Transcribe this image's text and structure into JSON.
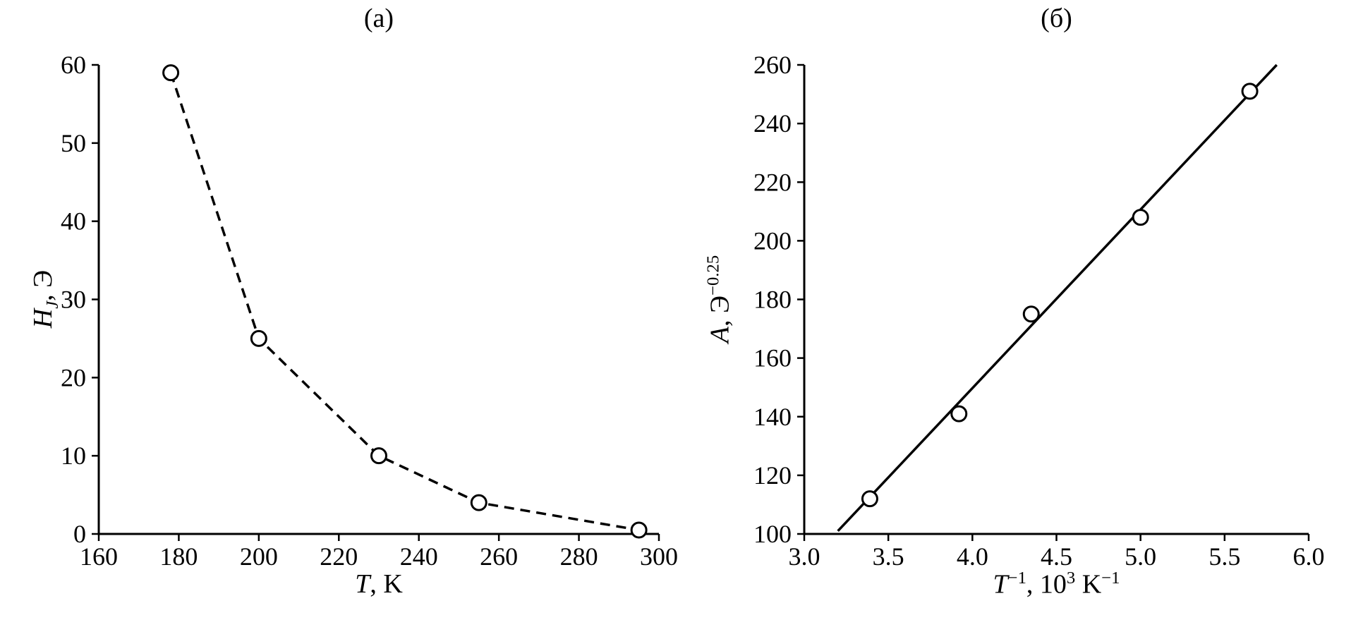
{
  "figure": {
    "background": "#ffffff",
    "ink_color": "#000000",
    "marker_fill": "#ffffff"
  },
  "chart_data": [
    {
      "type": "scatter",
      "panel_label": "(а)",
      "x": [
        178,
        200,
        230,
        255,
        295
      ],
      "y": [
        59,
        25,
        10,
        4,
        0.5
      ],
      "connect": "dashed",
      "marker": "open-circle",
      "xlim": [
        160,
        300
      ],
      "ylim": [
        0,
        60
      ],
      "xticks": [
        160,
        180,
        200,
        220,
        240,
        260,
        280,
        300
      ],
      "xtick_labels": [
        "160",
        "180",
        "200",
        "220",
        "240",
        "260",
        "280",
        "300"
      ],
      "yticks": [
        0,
        10,
        20,
        30,
        40,
        50,
        60
      ],
      "ytick_labels": [
        "0",
        "10",
        "20",
        "30",
        "40",
        "50",
        "60"
      ],
      "xlabel": {
        "text": "T, K",
        "parts": [
          [
            "i",
            "T"
          ],
          [
            "n",
            ", K"
          ]
        ]
      },
      "ylabel": {
        "text": "H_J, Э",
        "parts": [
          [
            "i",
            "H"
          ],
          [
            "subi",
            "J"
          ],
          [
            "n",
            ", Э"
          ]
        ]
      },
      "grid": "off",
      "legend": "none"
    },
    {
      "type": "scatter",
      "panel_label": "(б)",
      "x": [
        3.39,
        3.92,
        4.35,
        5.0,
        5.65
      ],
      "y": [
        112,
        141,
        175,
        208,
        251
      ],
      "connect": "none",
      "fit_line": {
        "x": [
          3.2,
          5.81
        ],
        "y": [
          101,
          260
        ]
      },
      "marker": "open-circle",
      "xlim": [
        3.0,
        6.0
      ],
      "ylim": [
        100,
        260
      ],
      "xticks": [
        3.0,
        3.5,
        4.0,
        4.5,
        5.0,
        5.5,
        6.0
      ],
      "xtick_labels": [
        "3.0",
        "3.5",
        "4.0",
        "4.5",
        "5.0",
        "5.5",
        "6.0"
      ],
      "yticks": [
        100,
        120,
        140,
        160,
        180,
        200,
        220,
        240,
        260
      ],
      "ytick_labels": [
        "100",
        "120",
        "140",
        "160",
        "180",
        "200",
        "220",
        "240",
        "260"
      ],
      "xlabel": {
        "text": "T^−1, 10^3 K^−1",
        "parts": [
          [
            "i",
            "T"
          ],
          [
            "sup",
            "−1"
          ],
          [
            "n",
            ", 10"
          ],
          [
            "sup",
            "3"
          ],
          [
            "n",
            " K"
          ],
          [
            "sup",
            "−1"
          ]
        ]
      },
      "ylabel": {
        "text": "A, Э^−0.25",
        "parts": [
          [
            "i",
            "A"
          ],
          [
            "n",
            ", Э"
          ],
          [
            "sup",
            "−0.25"
          ]
        ]
      },
      "grid": "off",
      "legend": "none"
    }
  ]
}
